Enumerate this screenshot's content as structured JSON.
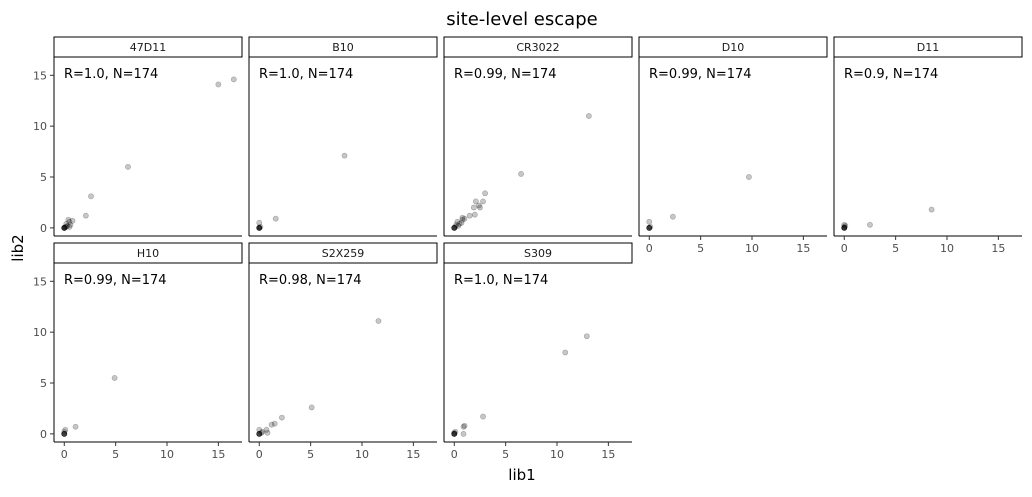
{
  "chart_data": {
    "type": "scatter",
    "title": "site-level escape",
    "xlabel": "lib1",
    "ylabel": "lib2",
    "xlim": [
      -1,
      17.3
    ],
    "ylim": [
      -0.8,
      16.8
    ],
    "xticks": [
      0,
      5,
      10,
      15
    ],
    "yticks": [
      0,
      5,
      10,
      15
    ],
    "point_color": "#000000",
    "point_alpha": 0.22,
    "grid": false,
    "facets": [
      {
        "name": "47D11",
        "annotation": "R=1.0, N=174",
        "points": [
          [
            0,
            0
          ],
          [
            0,
            0
          ],
          [
            0,
            0
          ],
          [
            0,
            0
          ],
          [
            0,
            0
          ],
          [
            0,
            0
          ],
          [
            0.1,
            0.1
          ],
          [
            0.2,
            0.1
          ],
          [
            0.3,
            0.2
          ],
          [
            0.4,
            0.8
          ],
          [
            0.5,
            0.6
          ],
          [
            0.6,
            0.3
          ],
          [
            0.8,
            0.7
          ],
          [
            0.5,
            0.1
          ],
          [
            0.2,
            0.4
          ],
          [
            2.1,
            1.2
          ],
          [
            2.6,
            3.1
          ],
          [
            6.2,
            6.0
          ],
          [
            15.0,
            14.1
          ],
          [
            16.5,
            14.6
          ]
        ]
      },
      {
        "name": "B10",
        "annotation": "R=1.0, N=174",
        "points": [
          [
            0,
            0
          ],
          [
            0,
            0
          ],
          [
            0,
            0
          ],
          [
            0,
            0
          ],
          [
            0,
            0
          ],
          [
            0,
            0
          ],
          [
            0.1,
            0.1
          ],
          [
            0,
            0.5
          ],
          [
            1.6,
            0.9
          ],
          [
            8.3,
            7.1
          ]
        ]
      },
      {
        "name": "CR3022",
        "annotation": "R=0.99, N=174",
        "points": [
          [
            0,
            0
          ],
          [
            0,
            0
          ],
          [
            0,
            0
          ],
          [
            0,
            0
          ],
          [
            0,
            0
          ],
          [
            0.1,
            0.1
          ],
          [
            0.2,
            0.3
          ],
          [
            0.3,
            0.6
          ],
          [
            0.4,
            0.2
          ],
          [
            0.5,
            0.4
          ],
          [
            0.7,
            0.5
          ],
          [
            0.8,
            1.0
          ],
          [
            0.8,
            0.8
          ],
          [
            1.0,
            0.9
          ],
          [
            1.5,
            1.2
          ],
          [
            1.9,
            2.0
          ],
          [
            2.0,
            1.3
          ],
          [
            2.1,
            2.6
          ],
          [
            2.4,
            2.2
          ],
          [
            2.5,
            2.0
          ],
          [
            2.8,
            2.6
          ],
          [
            3.0,
            3.4
          ],
          [
            6.5,
            5.3
          ],
          [
            13.1,
            11.0
          ]
        ]
      },
      {
        "name": "D10",
        "annotation": "R=0.99, N=174",
        "points": [
          [
            0,
            0
          ],
          [
            0,
            0
          ],
          [
            0,
            0
          ],
          [
            0,
            0
          ],
          [
            0,
            0
          ],
          [
            0.1,
            0.1
          ],
          [
            0,
            0.6
          ],
          [
            2.3,
            1.1
          ],
          [
            9.7,
            5.0
          ]
        ]
      },
      {
        "name": "D11",
        "annotation": "R=0.9, N=174",
        "points": [
          [
            0,
            0
          ],
          [
            0,
            0
          ],
          [
            0,
            0
          ],
          [
            0,
            0
          ],
          [
            0,
            0
          ],
          [
            0,
            0.1
          ],
          [
            0.1,
            0.2
          ],
          [
            0,
            0.3
          ],
          [
            2.5,
            0.3
          ],
          [
            8.5,
            1.8
          ]
        ]
      },
      {
        "name": "H10",
        "annotation": "R=0.99, N=174",
        "points": [
          [
            0,
            0
          ],
          [
            0,
            0
          ],
          [
            0,
            0
          ],
          [
            0,
            0
          ],
          [
            0,
            0
          ],
          [
            0,
            0.2
          ],
          [
            0.1,
            0.4
          ],
          [
            1.1,
            0.7
          ],
          [
            4.9,
            5.5
          ]
        ]
      },
      {
        "name": "S2X259",
        "annotation": "R=0.98, N=174",
        "points": [
          [
            0,
            0
          ],
          [
            0,
            0
          ],
          [
            0,
            0
          ],
          [
            0,
            0
          ],
          [
            0,
            0
          ],
          [
            0.2,
            0.1
          ],
          [
            0.3,
            0.2
          ],
          [
            0,
            0.4
          ],
          [
            0.7,
            0.4
          ],
          [
            0.8,
            0.1
          ],
          [
            1.2,
            0.9
          ],
          [
            1.5,
            1.0
          ],
          [
            2.2,
            1.6
          ],
          [
            5.1,
            2.6
          ],
          [
            11.6,
            11.1
          ]
        ]
      },
      {
        "name": "S309",
        "annotation": "R=1.0, N=174",
        "points": [
          [
            0,
            0
          ],
          [
            0,
            0
          ],
          [
            0,
            0
          ],
          [
            0,
            0
          ],
          [
            0,
            0
          ],
          [
            0,
            0.1
          ],
          [
            0.1,
            0.2
          ],
          [
            0.9,
            0.7
          ],
          [
            1.0,
            0.8
          ],
          [
            0.9,
            0.0
          ],
          [
            2.8,
            1.7
          ],
          [
            10.8,
            8.0
          ],
          [
            12.9,
            9.6
          ]
        ]
      }
    ]
  }
}
